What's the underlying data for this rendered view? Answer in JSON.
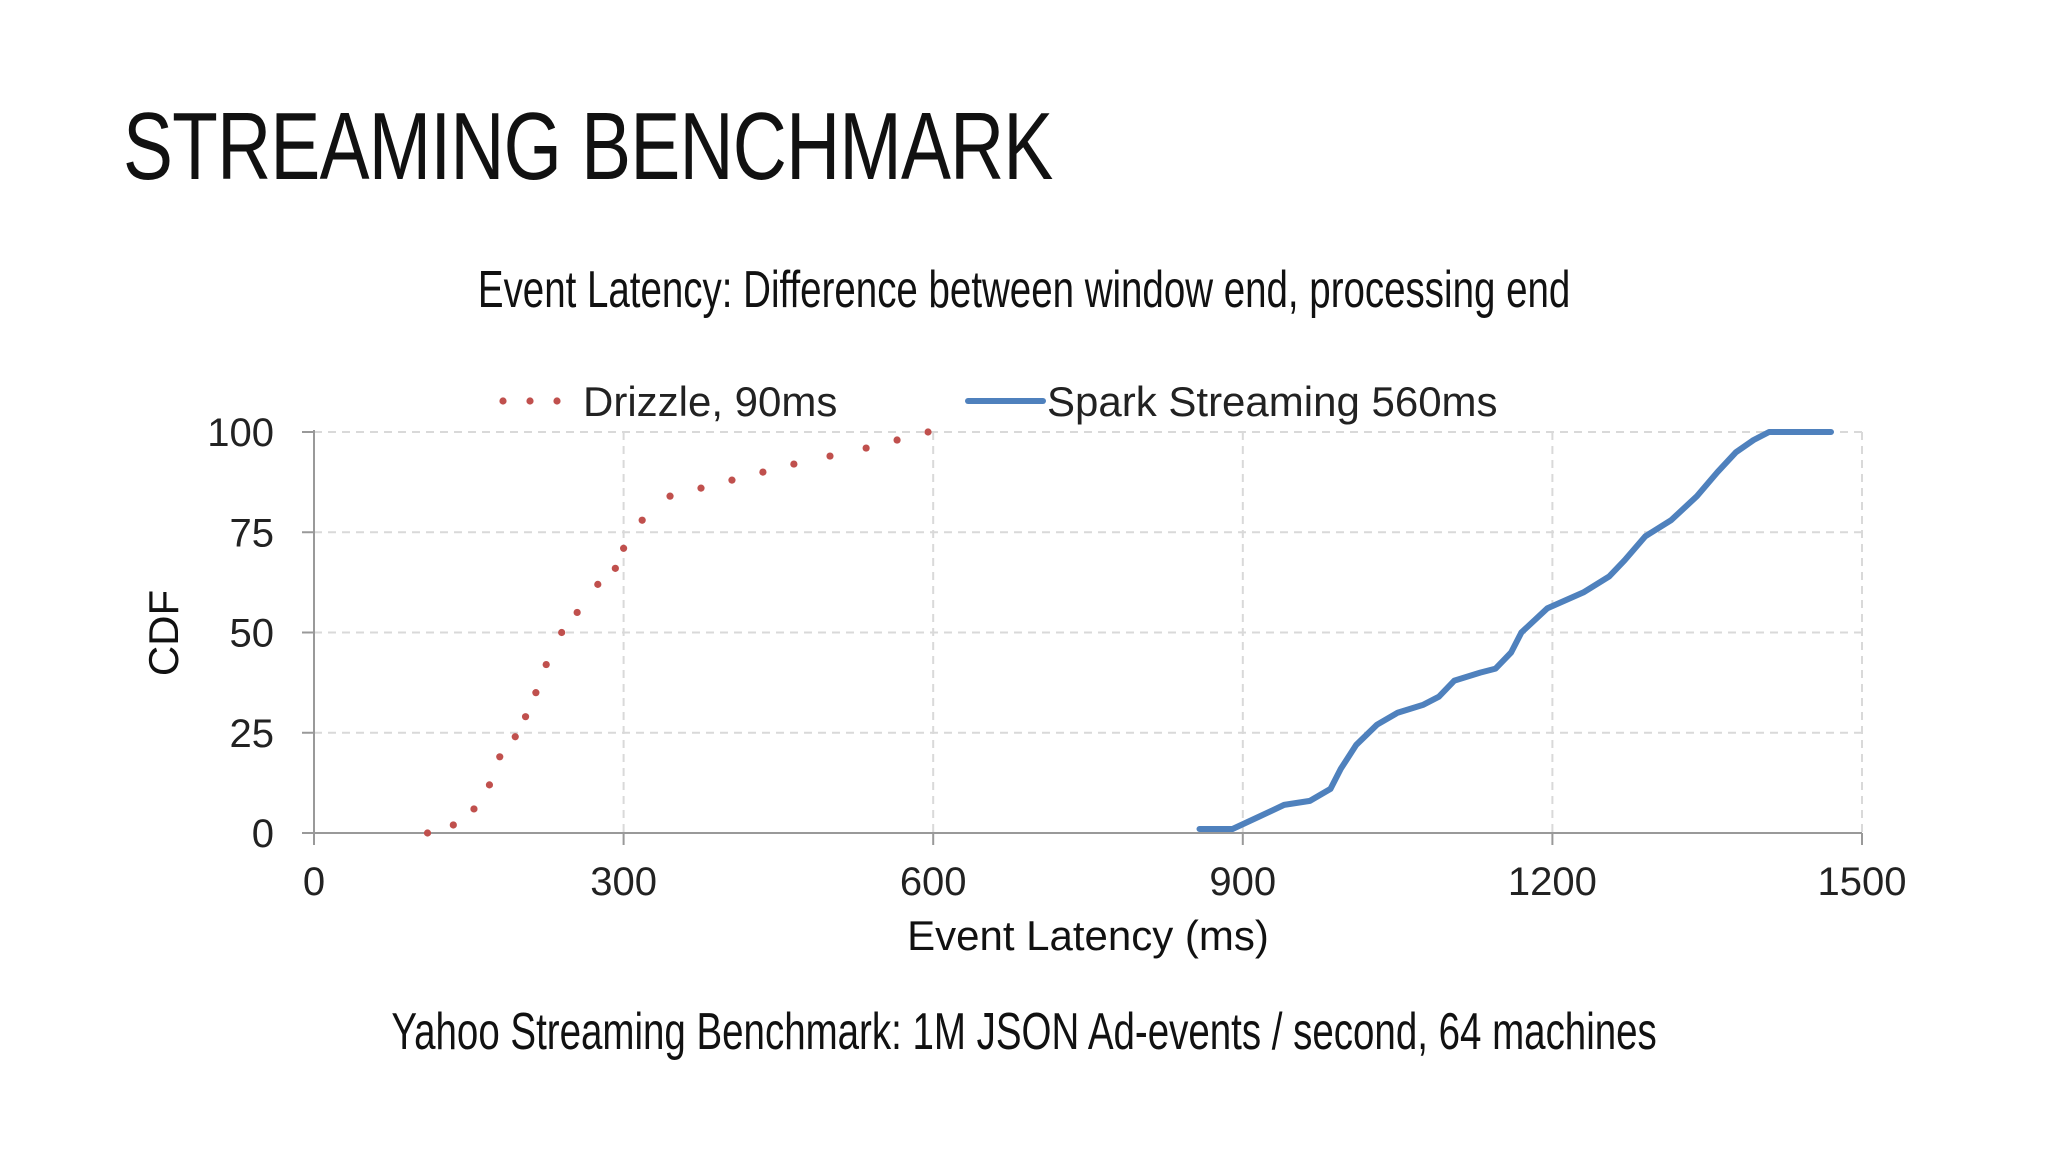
{
  "slide": {
    "title": "STREAMING BENCHMARK",
    "footer": "Yahoo Streaming Benchmark: 1M JSON Ad-events / second, 64 machines"
  },
  "chart_data": {
    "type": "line",
    "title": "Event Latency: Difference between window end, processing end",
    "xlabel": "Event Latency (ms)",
    "ylabel": "CDF",
    "xlim": [
      0,
      1500
    ],
    "ylim": [
      0,
      100
    ],
    "x_ticks": [
      "0",
      "300",
      "600",
      "900",
      "1200",
      "1500"
    ],
    "y_ticks": [
      "0",
      "25",
      "50",
      "75",
      "100"
    ],
    "grid": true,
    "legend_position": "top",
    "series": [
      {
        "name": "Drizzle, 90ms",
        "style": "dotted",
        "color": "#c0504d",
        "x": [
          110,
          135,
          155,
          170,
          180,
          195,
          205,
          215,
          225,
          240,
          255,
          275,
          292,
          300,
          318,
          345,
          375,
          405,
          435,
          465,
          500,
          535,
          565,
          595
        ],
        "y": [
          0,
          2,
          6,
          12,
          19,
          24,
          29,
          35,
          42,
          50,
          55,
          62,
          66,
          71,
          78,
          84,
          86,
          88,
          90,
          92,
          94,
          96,
          98,
          100
        ]
      },
      {
        "name": "Spark Streaming 560ms",
        "style": "solid",
        "color": "#4f81bd",
        "x": [
          858,
          890,
          915,
          940,
          965,
          985,
          995,
          1010,
          1030,
          1050,
          1075,
          1090,
          1105,
          1130,
          1145,
          1160,
          1170,
          1195,
          1230,
          1255,
          1270,
          1290,
          1315,
          1340,
          1360,
          1378,
          1395,
          1410,
          1470
        ],
        "y": [
          1,
          1,
          4,
          7,
          8,
          11,
          16,
          22,
          27,
          30,
          32,
          34,
          38,
          40,
          41,
          45,
          50,
          56,
          60,
          64,
          68,
          74,
          78,
          84,
          90,
          95,
          98,
          100,
          100
        ]
      }
    ]
  }
}
